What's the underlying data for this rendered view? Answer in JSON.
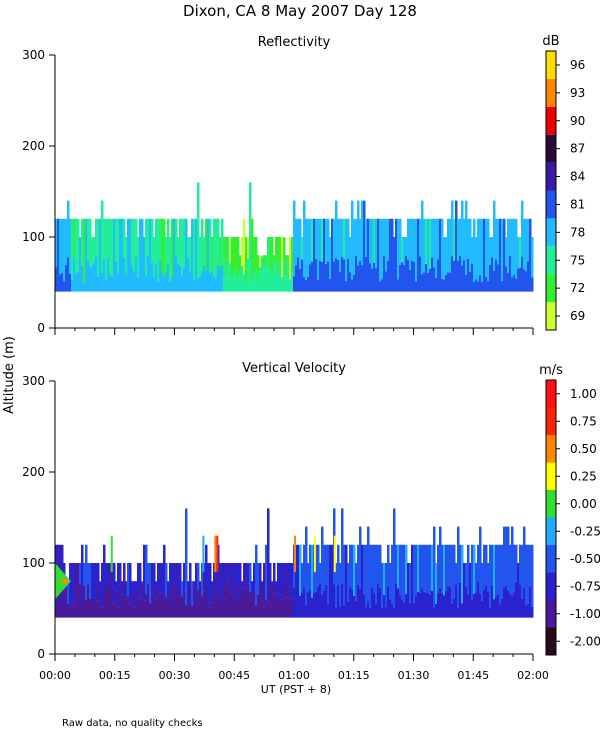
{
  "figure": {
    "title": "Dixon, CA  8 May 2007  Day 128",
    "ylabel": "Altitude (m)",
    "footnote": "Raw data, no quality checks"
  },
  "chart_data": [
    {
      "type": "heatmap",
      "title": "Reflectivity",
      "xlabel": "",
      "ylabel": "Altitude (m)",
      "xlim": [
        0,
        120
      ],
      "ylim": [
        0,
        300
      ],
      "y_ticks": [
        "0",
        "100",
        "200",
        "300"
      ],
      "colorbar": {
        "unit": "dB",
        "tick_labels": [
          "69",
          "72",
          "75",
          "78",
          "81",
          "84",
          "87",
          "90",
          "93",
          "96"
        ],
        "colors": [
          "#ccff33",
          "#33ee33",
          "#22ee99",
          "#22bbff",
          "#2255ee",
          "#3a1aaa",
          "#2a0a3a",
          "#ee0000",
          "#ff8800",
          "#ffdd00"
        ]
      },
      "echo_layer": {
        "base_altitude": 40,
        "typical_top": 120,
        "max_top": 160,
        "description_regimes": [
          {
            "t_start": 0,
            "t_end": 4,
            "top": 120,
            "dominant": "78"
          },
          {
            "t_start": 4,
            "t_end": 42,
            "top": 120,
            "dominant": "75"
          },
          {
            "t_start": 42,
            "t_end": 60,
            "top": 100,
            "dominant": "72"
          },
          {
            "t_start": 60,
            "t_end": 120,
            "top": 120,
            "dominant": "78"
          }
        ]
      }
    },
    {
      "type": "heatmap",
      "title": "Vertical Velocity",
      "xlabel": "UT  (PST + 8)",
      "ylabel": "Altitude (m)",
      "xlim": [
        0,
        120
      ],
      "ylim": [
        0,
        300
      ],
      "y_ticks": [
        "0",
        "100",
        "200",
        "300"
      ],
      "x_ticks": [
        "00:00",
        "00:15",
        "00:30",
        "00:45",
        "01:00",
        "01:15",
        "01:30",
        "01:45",
        "02:00"
      ],
      "colorbar": {
        "unit": "m/s",
        "tick_labels": [
          "-2.00",
          "-1.00",
          "-0.75",
          "-0.50",
          "-0.25",
          "0.00",
          "0.25",
          "0.50",
          "0.75",
          "1.00"
        ],
        "colors": [
          "#2a0a1a",
          "#4a1a9a",
          "#2a22cc",
          "#2255ee",
          "#22aaff",
          "#33dd33",
          "#ffff00",
          "#ff8800",
          "#ff2200",
          "#ff1111"
        ]
      },
      "echo_layer": {
        "base_altitude": 40,
        "typical_top": 120,
        "max_top": 160,
        "description_regimes": [
          {
            "t_start": 0,
            "t_end": 60,
            "top": 100,
            "dominant": "-0.75"
          },
          {
            "t_start": 60,
            "t_end": 120,
            "top": 120,
            "dominant": "-0.50"
          }
        ]
      }
    }
  ]
}
